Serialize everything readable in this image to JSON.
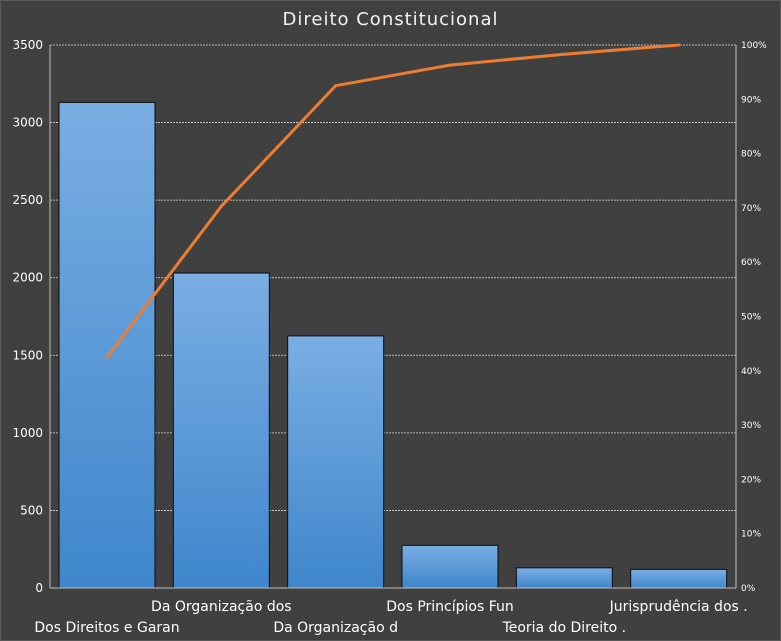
{
  "chart_data": {
    "type": "bar",
    "title": "Direito Constitucional",
    "categories": [
      "Dos Direitos e Garan",
      "Da Organização dos",
      "Da Organização d",
      "Dos Princípios Fun",
      "Teoria do Direito .",
      "Jurisprudência dos ."
    ],
    "series": [
      {
        "type": "bar",
        "values": [
          3130,
          2030,
          1625,
          275,
          130,
          120
        ]
      },
      {
        "type": "line",
        "axis": "right",
        "values": [
          42.5,
          70.3,
          92.5,
          96.3,
          98.3,
          100
        ]
      }
    ],
    "ylim": [
      0,
      3500
    ],
    "yticks": [
      0,
      500,
      1000,
      1500,
      2000,
      2500,
      3000,
      3500
    ],
    "y2lim": [
      0,
      100
    ],
    "y2ticks": [
      "0%",
      "10%",
      "20%",
      "30%",
      "40%",
      "50%",
      "60%",
      "70%",
      "80%",
      "90%",
      "100%"
    ],
    "grid": true,
    "legend": "none"
  },
  "colors": {
    "background": "#404040",
    "bar_top": "#7aaee3",
    "bar_bottom": "#3f86cc",
    "line": "#ed7d31",
    "grid": "#d9d9d9",
    "text": "#ffffff"
  }
}
